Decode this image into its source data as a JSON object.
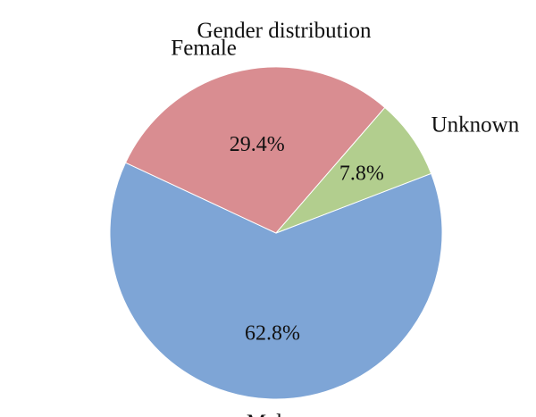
{
  "chart_data": {
    "type": "pie",
    "title": "Gender distribution",
    "slices": [
      {
        "label": "Male",
        "value": 62.8,
        "display": "62.8%",
        "color": "#7ea5d6"
      },
      {
        "label": "Female",
        "value": 29.4,
        "display": "29.4%",
        "color": "#d98d91"
      },
      {
        "label": "Unknown",
        "value": 7.8,
        "display": "7.8%",
        "color": "#b2ce8e"
      }
    ],
    "start_angle_deg": -21,
    "direction": "clockwise",
    "legend": "none"
  }
}
